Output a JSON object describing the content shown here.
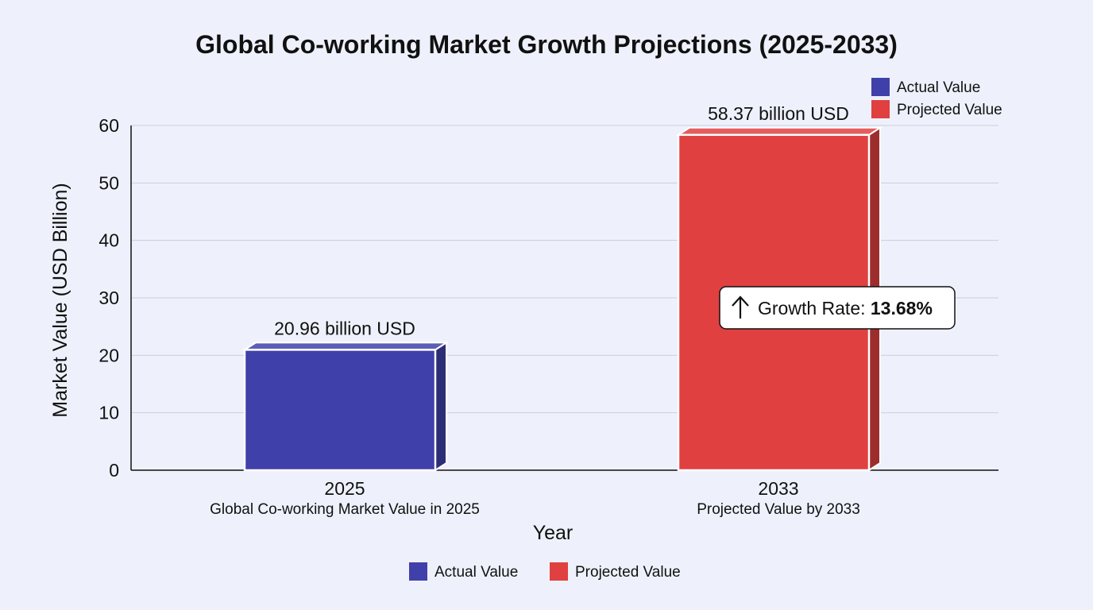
{
  "chart_data": {
    "type": "bar",
    "title": "Global Co-working Market Growth Projections (2025-2033)",
    "xlabel": "Year",
    "ylabel": "Market Value (USD Billion)",
    "ylim": [
      0,
      60
    ],
    "yticks": [
      0,
      10,
      20,
      30,
      40,
      50,
      60
    ],
    "grid": true,
    "categories": [
      "2025",
      "2033"
    ],
    "category_sublabels": [
      "Global Co-working Market Value in 2025",
      "Projected Value by 2033"
    ],
    "values": [
      20.96,
      58.37
    ],
    "data_labels": [
      "20.96 billion USD",
      "58.37 billion USD"
    ],
    "bar_series": [
      "Actual Value",
      "Projected Value"
    ],
    "colors": {
      "Actual Value": "#4040aa",
      "Projected Value": "#e04040"
    },
    "legend_top": {
      "placement": "top-right",
      "entries": [
        "Actual Value",
        "Projected Value"
      ]
    },
    "legend_bottom": {
      "placement": "bottom-center",
      "entries": [
        "Actual Value",
        "Projected Value"
      ]
    },
    "annotation": {
      "prefix": "Growth Rate: ",
      "value": "13.68%",
      "icon": "arrow-up-icon"
    }
  }
}
